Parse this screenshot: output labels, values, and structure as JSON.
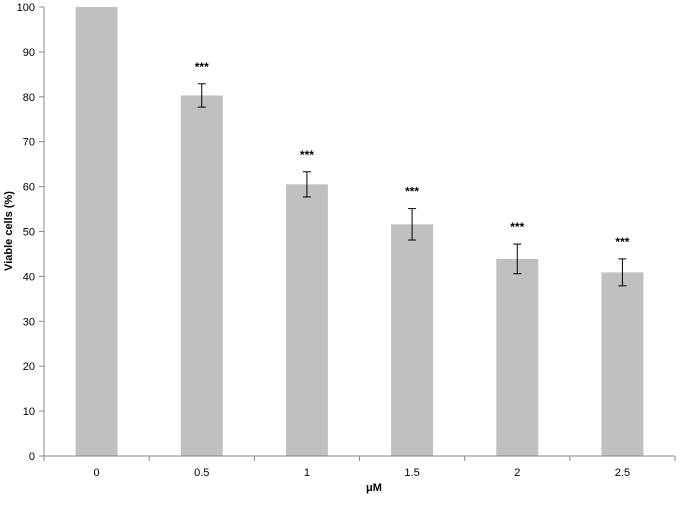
{
  "chart_data": {
    "type": "bar",
    "title": "",
    "xlabel": "μM",
    "ylabel": "Viable cells (%)",
    "categories": [
      "0",
      "0.5",
      "1",
      "1.5",
      "2",
      "2.5"
    ],
    "values": [
      100,
      80.3,
      60.5,
      51.6,
      43.9,
      40.9
    ],
    "errors": [
      0,
      2.6,
      2.8,
      3.5,
      3.3,
      3.0
    ],
    "annotations": [
      "",
      "***",
      "***",
      "***",
      "***",
      "***"
    ],
    "ylim": [
      0,
      100
    ],
    "yticks": [
      0,
      10,
      20,
      30,
      40,
      50,
      60,
      70,
      80,
      90,
      100
    ],
    "grid": false,
    "legend": "none",
    "colors": {
      "bar": "#c0c0c0",
      "axis": "#888888",
      "error": "#000000",
      "text": "#000000"
    }
  }
}
